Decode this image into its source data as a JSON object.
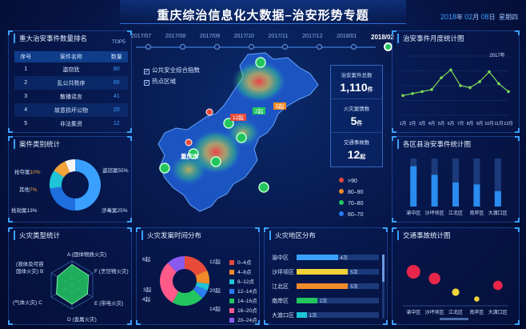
{
  "header": {
    "title": "重庆综治信息化大数据–治安形势专题",
    "year": "2018",
    "year_unit": "年",
    "month": "02",
    "month_unit": "月",
    "day": "08",
    "day_unit": "日",
    "weekday": "星期四"
  },
  "rank_panel": {
    "title": "重大治安事件数量排名",
    "top_label": "TOP5",
    "headers": [
      "序号",
      "案件名称",
      "数量"
    ],
    "rows": [
      {
        "no": "1",
        "name": "盗窃犹",
        "count": "80"
      },
      {
        "no": "2",
        "name": "乱公共秩序",
        "count": "65"
      },
      {
        "no": "3",
        "name": "散播谣言",
        "count": "41"
      },
      {
        "no": "4",
        "name": "故意损坏公物",
        "count": "20"
      },
      {
        "no": "5",
        "name": "非法集资",
        "count": "12"
      }
    ]
  },
  "case_type_panel": {
    "title": "案件类别统计",
    "chart_data": {
      "type": "pie",
      "labels": [
        "盗窃案",
        "涉毒案",
        "抢劫案",
        "抢夺案",
        "其他"
      ],
      "values": [
        55,
        25,
        13,
        10,
        7
      ],
      "colors": [
        "#3aa0ff",
        "#1f6fe0",
        "#1fc4d8",
        "#f2a33a",
        "#f5f5f5"
      ]
    },
    "labels": {
      "theft": "盗窃案55%",
      "drug": "涉毒案25%",
      "robbery": "抢劫案13%",
      "snatch": "抢夺案",
      "snatch_pct": "10%",
      "other": "其他",
      "other_pct": "7%"
    }
  },
  "fire_type_panel": {
    "title": "火灾类型统计",
    "chart_data": {
      "type": "radar",
      "axes": [
        "A (固体物质火灾)",
        "F (烹饪物火灾)",
        "E (带电火灾)",
        "D (金属火灾)",
        "C (气体火灾)",
        "B (液体及可容固体火灾)"
      ],
      "values": [
        0.85,
        0.8,
        0.75,
        0.8,
        0.75,
        0.7
      ]
    },
    "labels": {
      "A": "A (固体物质火灾)",
      "F": "F (烹饪物火灾)",
      "E": "E (带电火灾)",
      "D": "D (金属火灾)",
      "C": "(气体火灾) C",
      "B1": "(液体及可容",
      "B2": "固体火灾) B"
    }
  },
  "timeline": {
    "items": [
      "2017/07",
      "2017/08",
      "2017/09",
      "2017/10",
      "2017/11",
      "2017/12",
      "2018/01",
      "2018/02"
    ],
    "active_index": 7
  },
  "map_panel": {
    "options": [
      "公共安全综合指数",
      "热点区域"
    ],
    "center_label": "重庆市",
    "badges": [
      "12起",
      "2起",
      "5起"
    ],
    "legend": [
      {
        "label": ">90",
        "color": "#e84a3a"
      },
      {
        "label": "80–90",
        "color": "#f08a2a"
      },
      {
        "label": "70–80",
        "color": "#22c55e"
      },
      {
        "label": "60–70",
        "color": "#2a7cf0"
      }
    ]
  },
  "stats": [
    {
      "label": "治安案件总数",
      "value": "1,110",
      "unit": "件"
    },
    {
      "label": "火灾案情数",
      "value": "5",
      "unit": "件"
    },
    {
      "label": "交通事故数",
      "value": "12",
      "unit": "起"
    }
  ],
  "fire_time_panel": {
    "title": "火灾发案时间分布",
    "chart_data": {
      "type": "pie",
      "labels": [
        "0–4点",
        "4–8点",
        "8–12点",
        "12–14点",
        "14–16点",
        "16–20点",
        "20–24点"
      ],
      "values": [
        12,
        6,
        3,
        4,
        14,
        20,
        8
      ],
      "colors": [
        "#e84a3a",
        "#f08a2a",
        "#1fc4d8",
        "#2a7cf0",
        "#22c55e",
        "#ff5a8a",
        "#8a5af0"
      ]
    },
    "labels": {
      "l12": "12起",
      "l6": "6起",
      "l3": "3起",
      "l4": "4起",
      "l20": "20起",
      "l14": "14起"
    }
  },
  "fire_area_panel": {
    "title": "火灾地区分布",
    "chart_data": {
      "type": "bar",
      "orientation": "horizontal",
      "categories": [
        "渝中区",
        "沙坪坝区",
        "江北区",
        "南岸区",
        "大渡口区"
      ],
      "values": [
        4,
        5,
        5,
        2,
        1
      ],
      "value_labels": [
        "4次",
        "5次",
        "5次",
        "2次",
        "1次"
      ],
      "colors": [
        "#3aa0ff",
        "#f2d33a",
        "#f08a2a",
        "#22c55e",
        "#1fc4d8"
      ],
      "xlim": [
        0,
        8
      ]
    }
  },
  "monthly_panel": {
    "title": "治安事件月度统计图",
    "chart_data": {
      "type": "line",
      "series_label": "2017年",
      "categories": [
        "1月",
        "2月",
        "3月",
        "4月",
        "5月",
        "6月",
        "7月",
        "8月",
        "9月",
        "10月",
        "11月",
        "12月"
      ],
      "values": [
        50,
        55,
        60,
        65,
        95,
        115,
        75,
        70,
        85,
        110,
        80,
        60
      ],
      "ylim": [
        0,
        150
      ]
    }
  },
  "district_panel": {
    "title": "各区县治安事件统计图",
    "chart_data": {
      "type": "bar",
      "categories": [
        "渝中区",
        "沙坪坝区",
        "江北区",
        "南岸区",
        "大渡口区"
      ],
      "values": [
        42,
        33,
        25,
        23,
        16
      ],
      "ylim": [
        0,
        50
      ]
    }
  },
  "traffic_panel": {
    "title": "交通事故统计图",
    "chart_data": {
      "type": "scatter",
      "categories": [
        "渝中区",
        "沙坪坝区",
        "江北区",
        "南岸区",
        "大渡口区"
      ],
      "values": [
        5,
        4,
        2,
        1,
        3
      ],
      "sizes": [
        5,
        4,
        2,
        1,
        3
      ],
      "colors": [
        "#e8264a",
        "#e8264a",
        "#f2d33a",
        "#f2d33a",
        "#e8264a"
      ],
      "ylim": [
        0,
        8
      ]
    }
  }
}
